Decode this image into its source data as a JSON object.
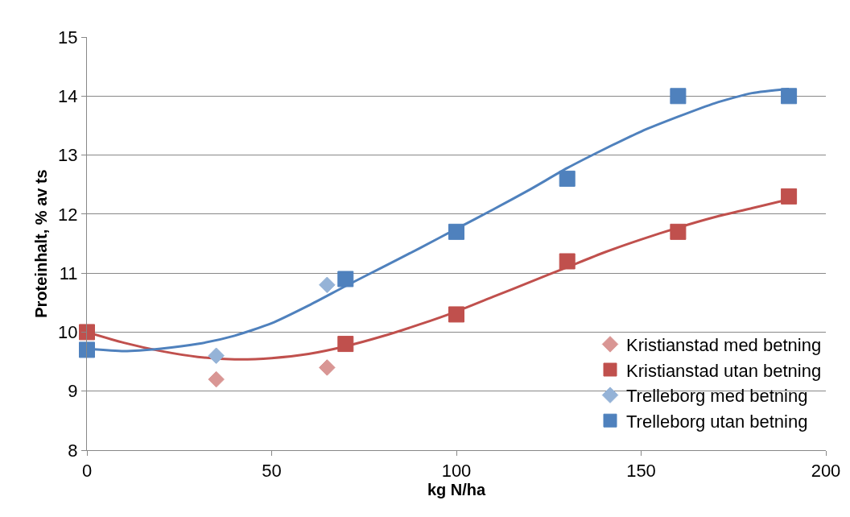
{
  "chart_data": {
    "type": "scatter",
    "xlabel": "kg N/ha",
    "ylabel": "Proteinhalt, % av ts",
    "xlim": [
      0,
      200
    ],
    "xticks": [
      0,
      50,
      100,
      150,
      200
    ],
    "ylim": [
      8,
      15
    ],
    "yticks": [
      8,
      9,
      10,
      11,
      12,
      13,
      14,
      15
    ],
    "grid": "y",
    "legend": "bottom right",
    "series": [
      {
        "type": "line",
        "color": "#c0504d",
        "marker": "none",
        "x": [
          0,
          10,
          20,
          30,
          40,
          50,
          60,
          70,
          80,
          90,
          100,
          110,
          120,
          130,
          140,
          150,
          160,
          170,
          180,
          190
        ],
        "values": [
          10.0,
          9.82,
          9.68,
          9.58,
          9.54,
          9.56,
          9.63,
          9.76,
          9.93,
          10.13,
          10.35,
          10.6,
          10.85,
          11.1,
          11.35,
          11.57,
          11.77,
          11.95,
          12.1,
          12.25
        ]
      },
      {
        "type": "line",
        "color": "#4f81bd",
        "marker": "none",
        "x": [
          0,
          10,
          20,
          30,
          40,
          50,
          60,
          70,
          80,
          90,
          100,
          110,
          120,
          130,
          140,
          150,
          160,
          170,
          180,
          190
        ],
        "values": [
          9.72,
          9.68,
          9.72,
          9.8,
          9.94,
          10.15,
          10.45,
          10.78,
          11.1,
          11.42,
          11.75,
          12.08,
          12.42,
          12.78,
          13.1,
          13.4,
          13.65,
          13.88,
          14.05,
          14.12
        ]
      },
      {
        "name": "Kristianstad med betning",
        "color": "#d99694",
        "marker": "diamond",
        "x": [
          35,
          65
        ],
        "values": [
          9.2,
          9.4
        ]
      },
      {
        "name": "Kristianstad utan betning",
        "color": "#c0504d",
        "marker": "square",
        "x": [
          0,
          70,
          100,
          130,
          160,
          190
        ],
        "values": [
          10.0,
          9.8,
          10.3,
          11.2,
          11.7,
          12.3
        ]
      },
      {
        "name": "Trelleborg med betning",
        "color": "#95b3d7",
        "marker": "diamond",
        "x": [
          35,
          65
        ],
        "values": [
          9.6,
          10.8
        ]
      },
      {
        "name": "Trelleborg utan betning",
        "color": "#4f81bd",
        "marker": "square",
        "x": [
          0,
          70,
          100,
          130,
          160,
          190
        ],
        "values": [
          9.7,
          10.9,
          11.7,
          12.6,
          14.0,
          14.0
        ]
      }
    ]
  }
}
